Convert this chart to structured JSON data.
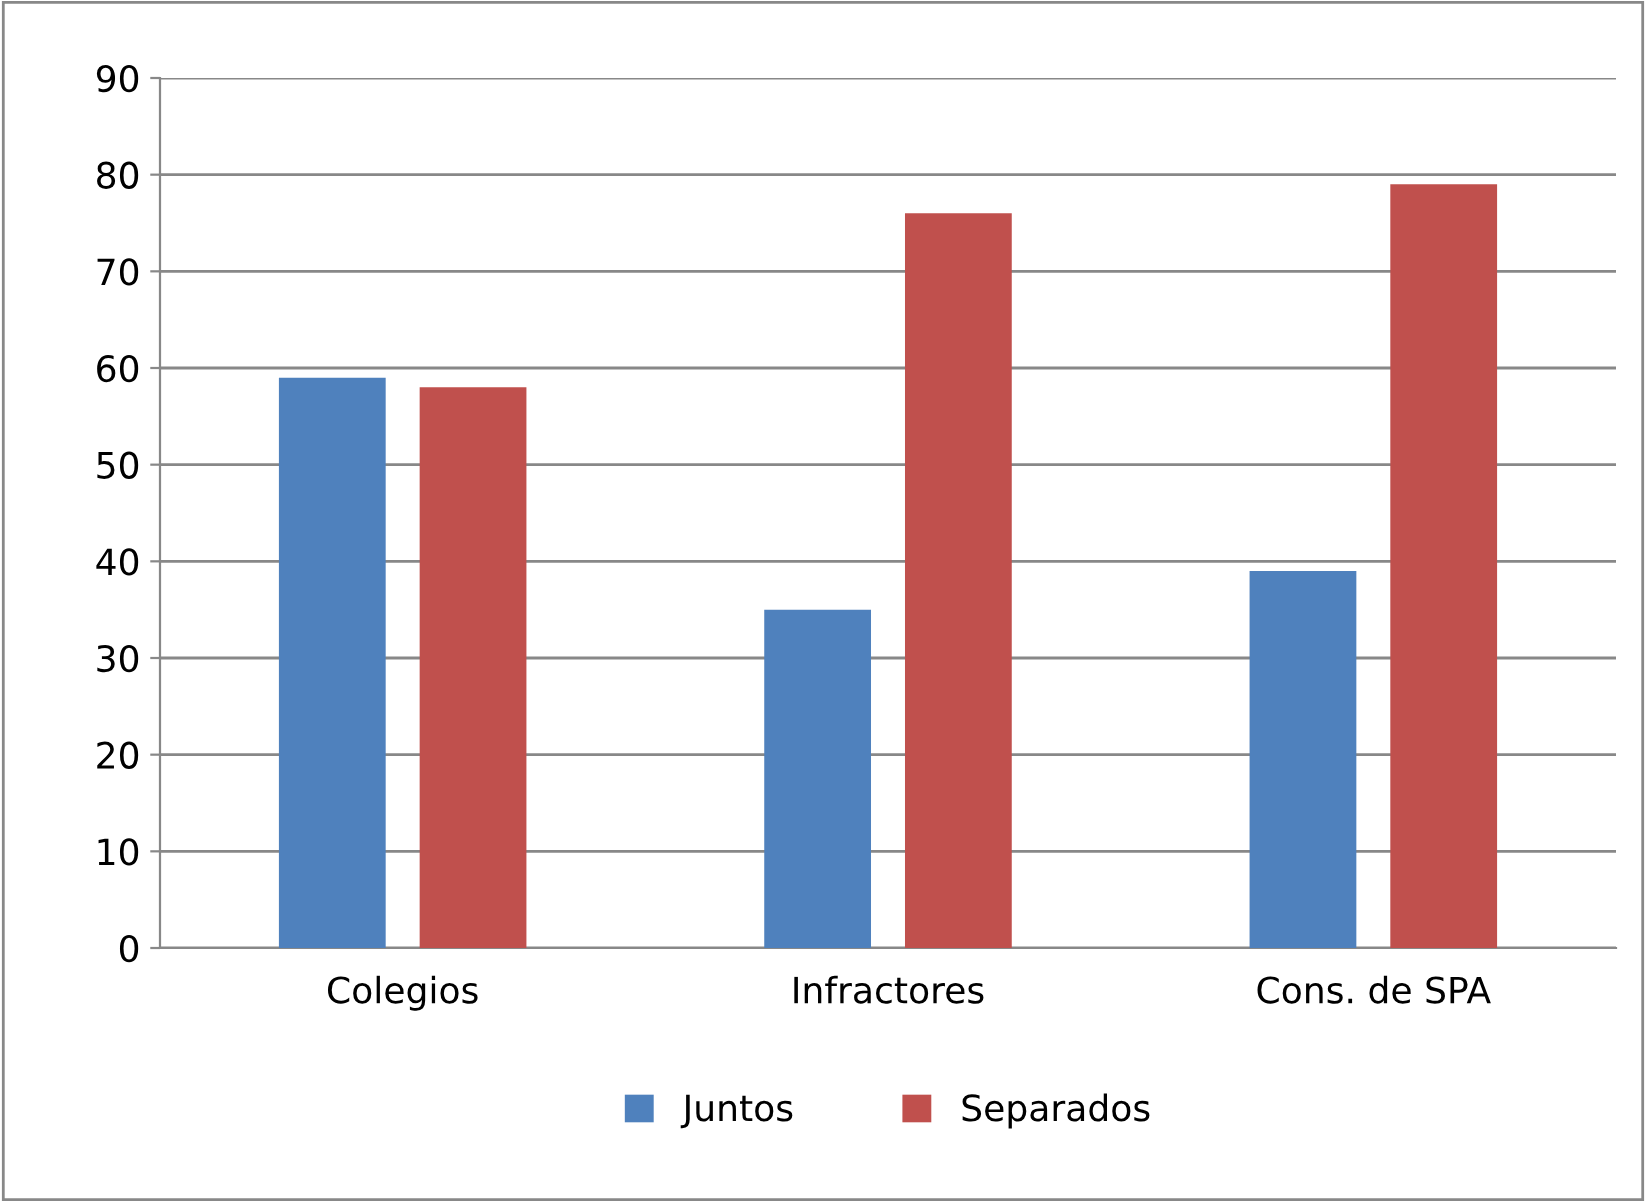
{
  "chart_data": {
    "type": "bar",
    "categories": [
      "Colegios",
      "Infractores",
      "Cons. de SPA"
    ],
    "series": [
      {
        "name": "Juntos",
        "color": "#4f81bd",
        "values": [
          59,
          35,
          39
        ]
      },
      {
        "name": "Separados",
        "color": "#c0504d",
        "values": [
          58,
          76,
          79
        ]
      }
    ],
    "ylim": [
      0,
      90
    ],
    "yticks": [
      0,
      10,
      20,
      30,
      40,
      50,
      60,
      70,
      80,
      90
    ],
    "grid": "y",
    "legend": "bottom"
  }
}
